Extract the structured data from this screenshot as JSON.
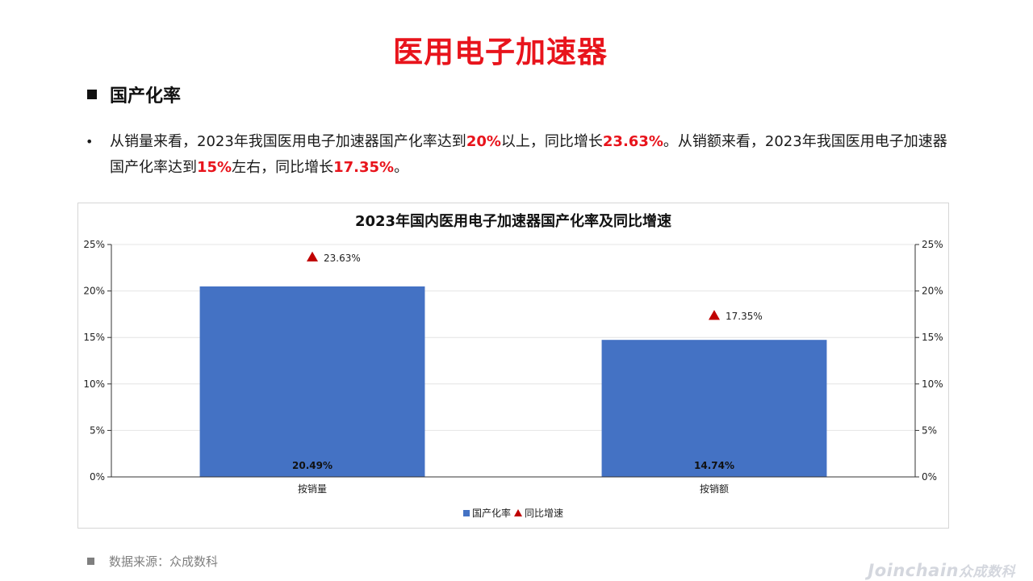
{
  "page": {
    "title": "医用电子加速器",
    "section_heading": "国产化率"
  },
  "summary": {
    "bullet": "•",
    "parts": [
      {
        "text": "从销量来看，2023年我国医用电子加速器国产化率达到",
        "hl": false
      },
      {
        "text": "20%",
        "hl": true
      },
      {
        "text": "以上，同比增长",
        "hl": false
      },
      {
        "text": "23.63%",
        "hl": true
      },
      {
        "text": "。从销额来看，2023年我国医用电子加速器国产化率达到",
        "hl": false
      },
      {
        "text": "15%",
        "hl": true
      },
      {
        "text": "左右，同比增长",
        "hl": false
      },
      {
        "text": "17.35%",
        "hl": true
      },
      {
        "text": "。",
        "hl": false
      }
    ]
  },
  "chart_data": {
    "type": "bar",
    "title": "2023年国内医用电子加速器国产化率及同比增速",
    "categories": [
      "按销量",
      "按销额"
    ],
    "series": [
      {
        "name": "国产化率",
        "kind": "bar",
        "values": [
          20.49,
          14.74
        ],
        "labels": [
          "20.49%",
          "14.74%"
        ],
        "color": "#4472c4",
        "axis": "left"
      },
      {
        "name": "同比增速",
        "kind": "marker",
        "values": [
          23.63,
          17.35
        ],
        "labels": [
          "23.63%",
          "17.35%"
        ],
        "color": "#c00000",
        "axis": "right"
      }
    ],
    "ylim": [
      0,
      25
    ],
    "y2lim": [
      0,
      25
    ],
    "yticks": [
      "0%",
      "5%",
      "10%",
      "15%",
      "20%",
      "25%"
    ],
    "y2ticks": [
      "0%",
      "5%",
      "10%",
      "15%",
      "20%",
      "25%"
    ],
    "grid": true,
    "legend": "bottom-center"
  },
  "footer": {
    "source": "数据来源：众成数科",
    "watermark_brand": "Joinchain",
    "watermark_cn": "众成数科"
  },
  "colors": {
    "title_red": "#e8141c",
    "bar_blue": "#4472c4",
    "marker_red": "#c00000"
  }
}
